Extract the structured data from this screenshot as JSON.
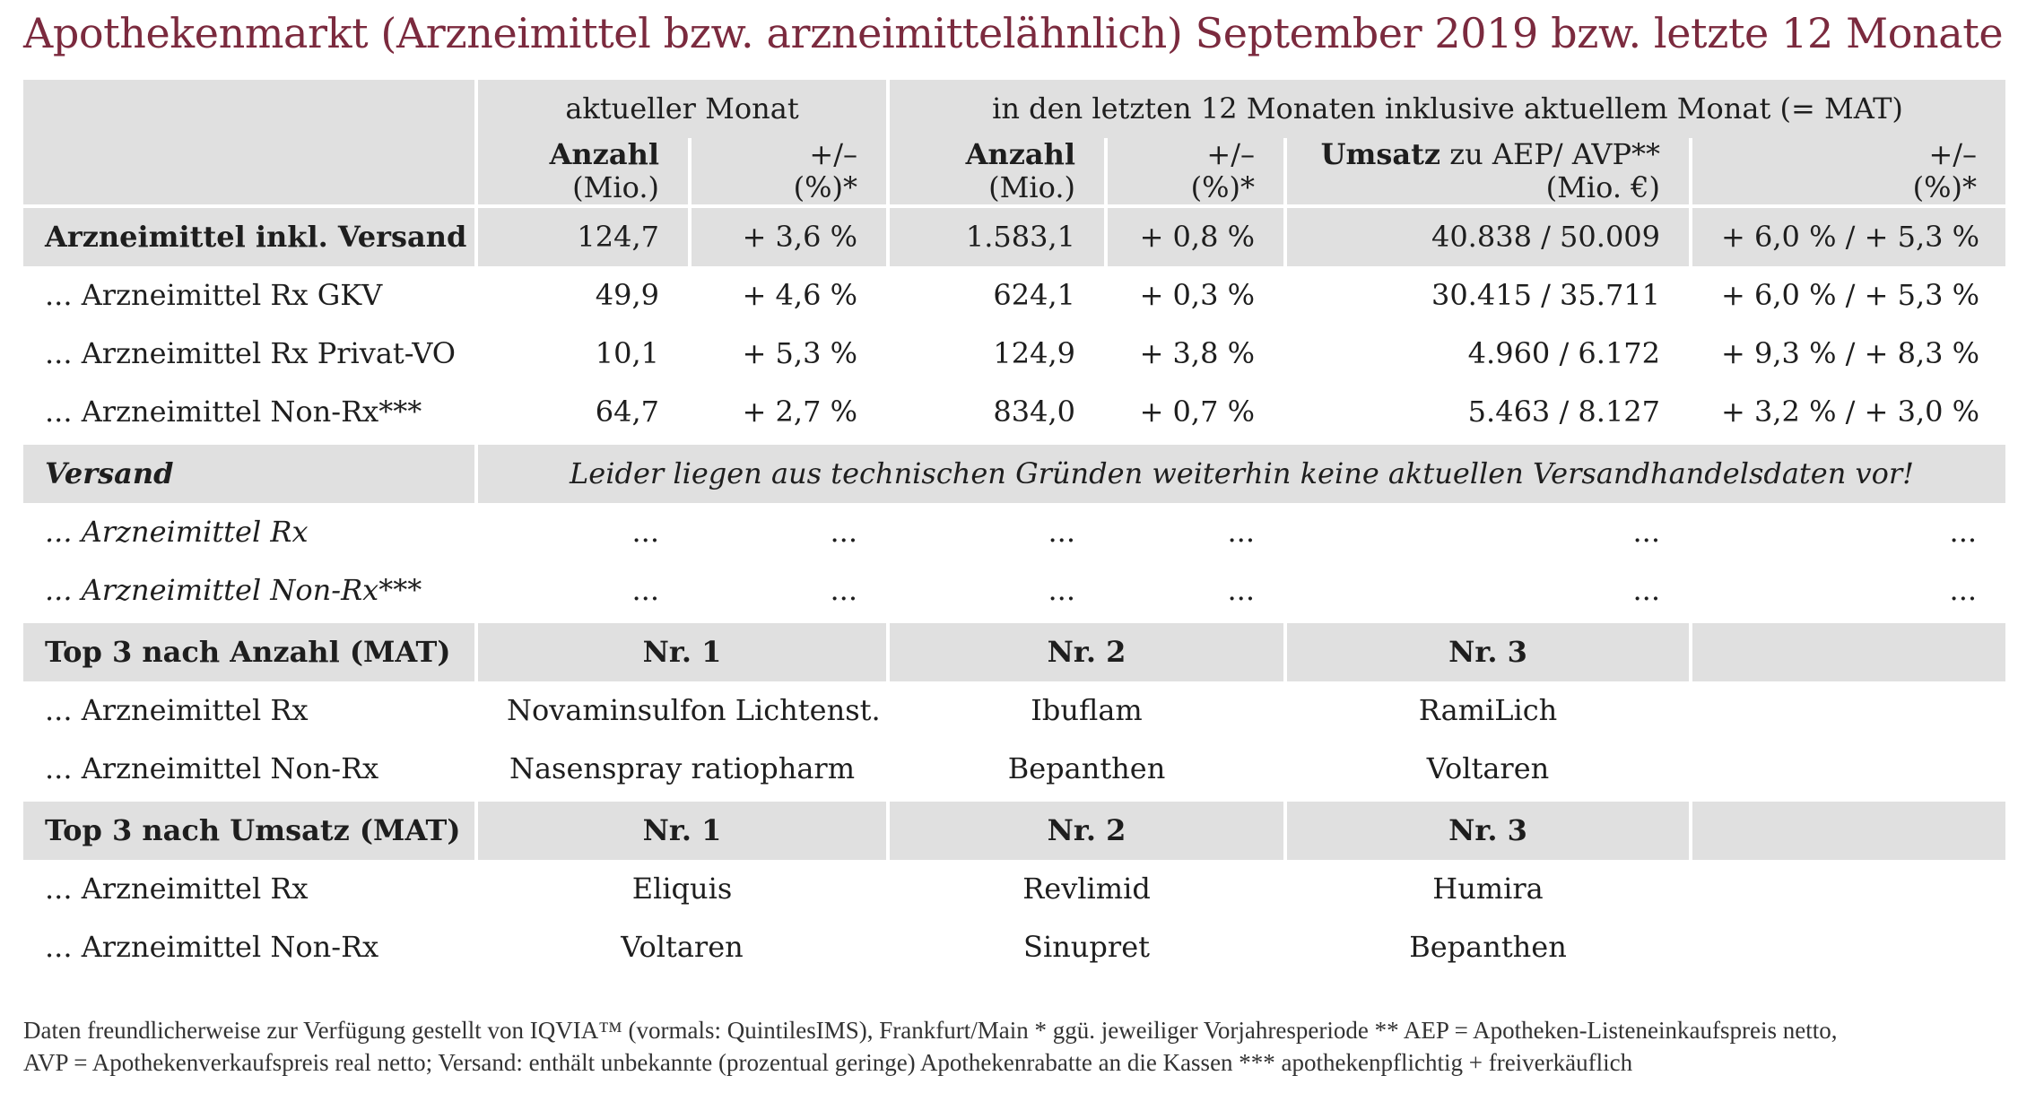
{
  "title": "Apothekenmarkt (Arzneimittel bzw. arzneimittelähnlich) September 2019 bzw. letzte 12 Monate",
  "header": {
    "group_current": "aktueller Monat",
    "group_mat": "in den letzten 12 Monaten inklusive aktuellem Monat (= MAT)",
    "col_anzahl_1": "Anzahl",
    "col_anzahl_2": "(Mio.)",
    "col_pm_1": "+/–",
    "col_pm_2": "(%)*",
    "col_mat_anzahl_1": "Anzahl",
    "col_mat_anzahl_2": "(Mio.)",
    "col_mat_pm_1": "+/–",
    "col_mat_pm_2": "(%)*",
    "col_umsatz_bold": "Umsatz",
    "col_umsatz_rest": " zu AEP/ AVP**",
    "col_umsatz_2": "(Mio. €)",
    "col_umsatz_pm_1": "+/–",
    "col_umsatz_pm_2": "(%)*"
  },
  "main_rows": [
    {
      "label": "Arzneimittel inkl. Versand",
      "anzahl": "124,7",
      "pm": "+ 3,6 %",
      "mat_anzahl": "1.583,1",
      "mat_pm": "+ 0,8 %",
      "umsatz": "40.838 / 50.009",
      "umsatz_pm": "+ 6,0 % / + 5,3 %"
    },
    {
      "label": "... Arzneimittel Rx GKV",
      "anzahl": "49,9",
      "pm": "+ 4,6 %",
      "mat_anzahl": "624,1",
      "mat_pm": "+ 0,3 %",
      "umsatz": "30.415 / 35.711",
      "umsatz_pm": "+ 6,0 % / + 5,3 %"
    },
    {
      "label": "... Arzneimittel Rx Privat-VO",
      "anzahl": "10,1",
      "pm": "+ 5,3 %",
      "mat_anzahl": "124,9",
      "mat_pm": "+ 3,8 %",
      "umsatz": "4.960 / 6.172",
      "umsatz_pm": "+ 9,3 % / + 8,3 %"
    },
    {
      "label": "... Arzneimittel Non-Rx***",
      "anzahl": "64,7",
      "pm": "+ 2,7 %",
      "mat_anzahl": "834,0",
      "mat_pm": "+ 0,7 %",
      "umsatz": "5.463 / 8.127",
      "umsatz_pm": "+ 3,2 % / + 3,0 %"
    }
  ],
  "versand": {
    "label": "Versand",
    "note": "Leider liegen aus technischen Gründen weiterhin keine aktuellen Versandhandelsdaten vor!",
    "rows": [
      {
        "label": "... Arzneimittel Rx",
        "anzahl": "...",
        "pm": "...",
        "mat_anzahl": "...",
        "mat_pm": "...",
        "umsatz": "...",
        "umsatz_pm": "..."
      },
      {
        "label": "... Arzneimittel Non-Rx***",
        "anzahl": "...",
        "pm": "...",
        "mat_anzahl": "...",
        "mat_pm": "...",
        "umsatz": "...",
        "umsatz_pm": "..."
      }
    ]
  },
  "top_anzahl": {
    "label": "Top 3 nach Anzahl (MAT)",
    "nr1": "Nr. 1",
    "nr2": "Nr. 2",
    "nr3": "Nr. 3",
    "rows": [
      {
        "label": "... Arzneimittel Rx",
        "p1": "Novaminsulfon Lichtenst.",
        "p2": "Ibuflam",
        "p3": "RamiLich"
      },
      {
        "label": "... Arzneimittel Non-Rx",
        "p1": "Nasenspray ratiopharm",
        "p2": "Bepanthen",
        "p3": "Voltaren"
      }
    ]
  },
  "top_umsatz": {
    "label": "Top 3 nach Umsatz (MAT)",
    "nr1": "Nr. 1",
    "nr2": "Nr. 2",
    "nr3": "Nr. 3",
    "rows": [
      {
        "label": "... Arzneimittel Rx",
        "p1": "Eliquis",
        "p2": "Revlimid",
        "p3": "Humira"
      },
      {
        "label": "... Arzneimittel Non-Rx",
        "p1": "Voltaren",
        "p2": "Sinupret",
        "p3": "Bepanthen"
      }
    ]
  },
  "footnote": {
    "line1": "Daten freundlicherweise zur Verfügung gestellt von IQVIA™ (vormals: QuintilesIMS), Frankfurt/Main   * ggü. jeweiliger Vorjahresperiode   ** AEP = Apotheken-Listeneinkaufspreis netto,",
    "line2": "AVP = Apothekenverkaufspreis real netto; Versand: enthält unbekannte (prozentual geringe) Apothekenrabatte an die Kassen    *** apothekenpflichtig + freiverkäuflich"
  }
}
